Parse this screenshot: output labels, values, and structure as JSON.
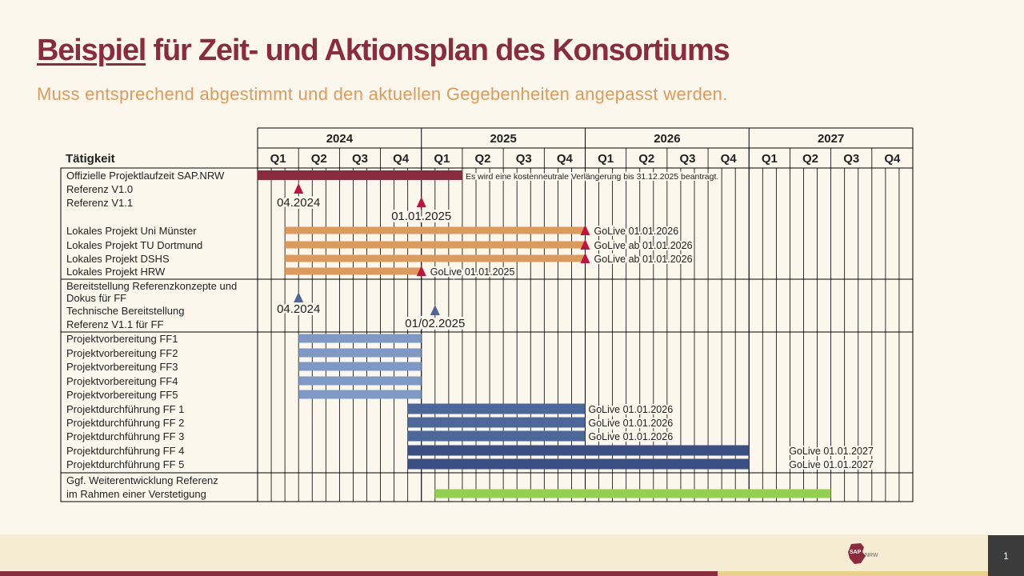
{
  "slide": {
    "title_underlined": "Beispiel",
    "title_rest": " für Zeit- und Aktionsplan des Konsortiums",
    "subtitle": "Muss entsprechend abgestimmt und den aktuellen Gegebenheiten angepasst werden.",
    "page_number": "1"
  },
  "logo": {
    "text_left": "SAP",
    "text_right": "NRW"
  },
  "colors": {
    "title": "#8b2c3e",
    "subtitle": "#dc9a5c",
    "laufzeit": "#8b2c3e",
    "lokal": "#dc9a5c",
    "vorbereitung": "#7e99c5",
    "durchfuehrung": "#4c6799",
    "durchfuehrung_dark": "#3b4f84",
    "weiterentwicklung": "#92d050",
    "milestone_red": "#c0143c",
    "milestone_blue": "#4c6799"
  },
  "chart_data": {
    "type": "gantt",
    "column_header": "Tätigkeit",
    "years": [
      "2024",
      "2025",
      "2026",
      "2027"
    ],
    "quarters": [
      "Q1",
      "Q2",
      "Q3",
      "Q4"
    ],
    "tasks": [
      {
        "label": "Offizielle  Projektlaufzeit SAP.NRW",
        "bar": {
          "start": "2024-01",
          "end": "2025-03",
          "color": "laufzeit"
        },
        "note": "Es wird eine kostenneutrale Verlängerung bis 31.12.2025  beantragt."
      },
      {
        "label": "Referenz V1.0"
      },
      {
        "label": "Referenz V1.1"
      },
      {
        "label": "Lokales Projekt Uni Münster",
        "bar": {
          "start": "2024-03",
          "end": "2025-12",
          "color": "lokal"
        },
        "milestone": {
          "date": "2026-01",
          "color": "milestone_red",
          "label": "GoLive 01.01.2026"
        }
      },
      {
        "label": "Lokales Projekt TU Dortmund",
        "bar": {
          "start": "2024-03",
          "end": "2025-12",
          "color": "lokal"
        },
        "milestone": {
          "date": "2026-01",
          "color": "milestone_red",
          "label": "GoLive ab 01.01.2026"
        }
      },
      {
        "label": "Lokales Projekt DSHS",
        "bar": {
          "start": "2024-03",
          "end": "2025-12",
          "color": "lokal"
        },
        "milestone": {
          "date": "2026-01",
          "color": "milestone_red",
          "label": "GoLive  ab 01.01.2026"
        }
      },
      {
        "label": "Lokales Projekt HRW",
        "bar": {
          "start": "2024-03",
          "end": "2024-12",
          "color": "lokal"
        },
        "milestone": {
          "date": "2025-01",
          "color": "milestone_red",
          "label": "GoLive 01.01.2025"
        }
      },
      {
        "label": "Bereitstellung Referenzkonzepte und"
      },
      {
        "label": "Dokus für FF"
      },
      {
        "label": "Technische Bereitstellung"
      },
      {
        "label": "Referenz V1.1 für FF"
      },
      {
        "label": "Projektvorbereitung FF1",
        "bar": {
          "start": "2024-04",
          "end": "2024-12",
          "color": "vorbereitung"
        }
      },
      {
        "label": "Projektvorbereitung FF2",
        "bar": {
          "start": "2024-04",
          "end": "2024-12",
          "color": "vorbereitung"
        }
      },
      {
        "label": "Projektvorbereitung FF3",
        "bar": {
          "start": "2024-04",
          "end": "2024-12",
          "color": "vorbereitung"
        }
      },
      {
        "label": "Projektvorbereitung FF4",
        "bar": {
          "start": "2024-04",
          "end": "2024-12",
          "color": "vorbereitung"
        }
      },
      {
        "label": "Projektvorbereitung FF5",
        "bar": {
          "start": "2024-04",
          "end": "2024-12",
          "color": "vorbereitung"
        }
      },
      {
        "label": "Projektdurchführung FF 1",
        "bar": {
          "start": "2024-12",
          "end": "2025-12",
          "color": "durchfuehrung"
        },
        "note": "GoLive 01.01.2026"
      },
      {
        "label": "Projektdurchführung FF 2",
        "bar": {
          "start": "2024-12",
          "end": "2025-12",
          "color": "durchfuehrung"
        },
        "note": "GoLive 01.01.2026"
      },
      {
        "label": "Projektdurchführung FF 3",
        "bar": {
          "start": "2024-12",
          "end": "2025-12",
          "color": "durchfuehrung"
        },
        "note": "GoLive 01.01.2026"
      },
      {
        "label": "Projektdurchführung FF 4",
        "bar": {
          "start": "2024-12",
          "end": "2026-12",
          "color": "durchfuehrung_dark"
        },
        "note": "GoLive 01.01.2027"
      },
      {
        "label": "Projektdurchführung FF 5",
        "bar": {
          "start": "2024-12",
          "end": "2026-12",
          "color": "durchfuehrung_dark"
        },
        "note": "GoLive 01.01.2027"
      },
      {
        "label": "Ggf. Weiterentwicklung Referenz"
      },
      {
        "label": "im Rahmen einer Verstetigung",
        "bar": {
          "start": "2025-02",
          "end": "2027-06",
          "color": "weiterentwicklung"
        }
      }
    ],
    "milestones": [
      {
        "date": "2024-04",
        "color": "milestone_red",
        "label": "04.2024",
        "group": "referenz"
      },
      {
        "date": "2025-01",
        "color": "milestone_red",
        "label": "01.01.2025",
        "group": "referenz"
      },
      {
        "date": "2024-04",
        "color": "milestone_blue",
        "label": "04.2024",
        "group": "bereitstellung"
      },
      {
        "date": "2025-02",
        "color": "milestone_blue",
        "label": "01/02.2025",
        "group": "bereitstellung"
      }
    ]
  }
}
